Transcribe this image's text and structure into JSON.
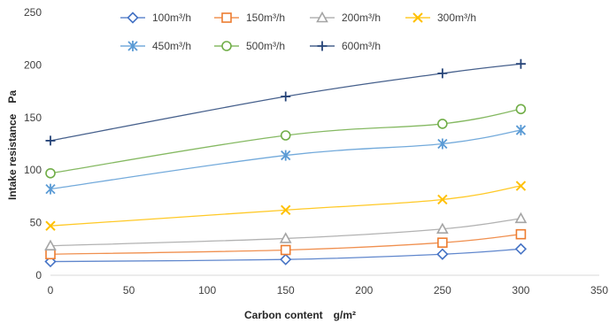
{
  "chart_data": {
    "type": "line",
    "title": "",
    "xlabel": "Carbon content　g/m²",
    "ylabel": "Intake resistance　Pa",
    "x": [
      0,
      150,
      250,
      300
    ],
    "xlim": [
      0,
      350
    ],
    "ylim": [
      0,
      250
    ],
    "xticks": [
      "0",
      "50",
      "100",
      "150",
      "200",
      "250",
      "300",
      "350"
    ],
    "yticks": [
      "0",
      "50",
      "100",
      "150",
      "200",
      "250"
    ],
    "grid": false,
    "legend_position": "top",
    "series": [
      {
        "name": "100m³/h",
        "values": [
          13,
          15,
          20,
          25
        ],
        "color": "#4472C4",
        "marker": "diamond"
      },
      {
        "name": "150m³/h",
        "values": [
          20,
          24,
          31,
          39
        ],
        "color": "#ED7D31",
        "marker": "square"
      },
      {
        "name": "200m³/h",
        "values": [
          28,
          35,
          44,
          54
        ],
        "color": "#A5A5A5",
        "marker": "triangle"
      },
      {
        "name": "300m³/h",
        "values": [
          47,
          62,
          72,
          85
        ],
        "color": "#FFC000",
        "marker": "x"
      },
      {
        "name": "450m³/h",
        "values": [
          82,
          114,
          125,
          138
        ],
        "color": "#5B9BD5",
        "marker": "asterisk"
      },
      {
        "name": "500m³/h",
        "values": [
          97,
          133,
          144,
          158
        ],
        "color": "#70AD47",
        "marker": "circle"
      },
      {
        "name": "600m³/h",
        "values": [
          128,
          170,
          192,
          201
        ],
        "color": "#264478",
        "marker": "plus"
      }
    ]
  }
}
